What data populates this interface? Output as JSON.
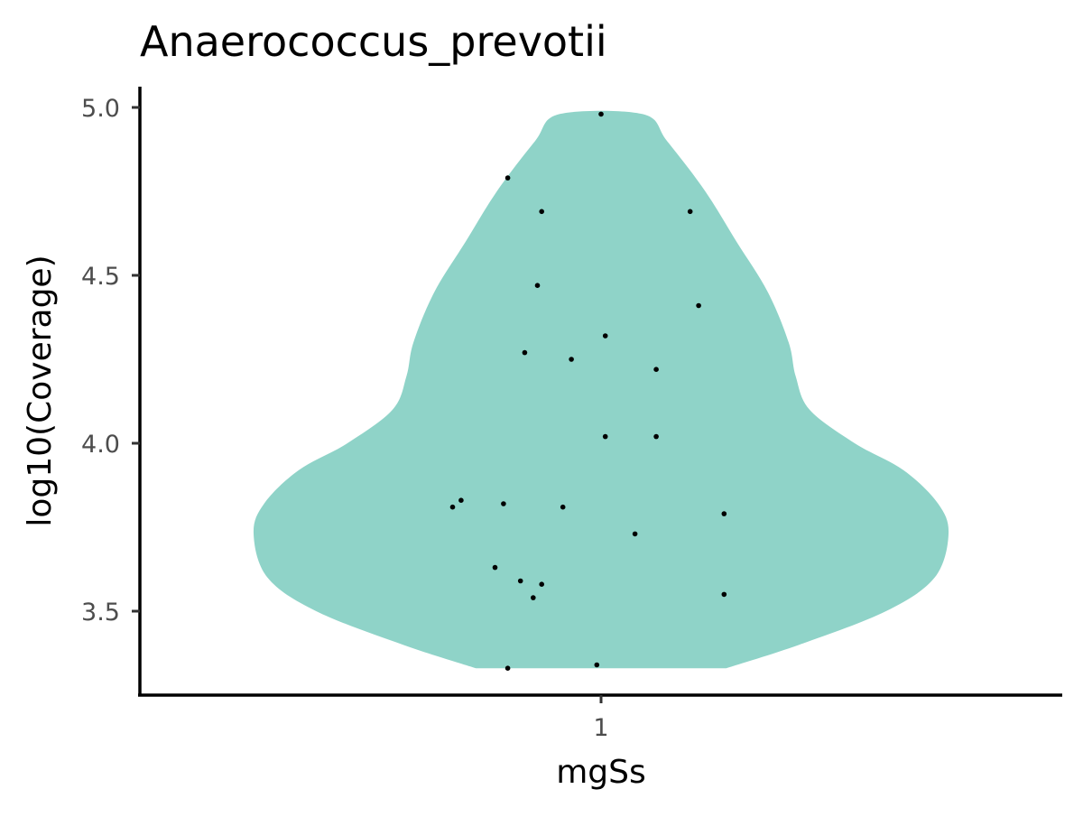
{
  "chart_data": {
    "type": "violin",
    "title": "Anaerococcus_prevotii",
    "xlabel": "mgSs",
    "ylabel": "log10(Coverage)",
    "categories": [
      "1"
    ],
    "y_ticks": [
      "3.5",
      "4.0",
      "4.5",
      "5.0"
    ],
    "ylim": [
      3.25,
      5.05
    ],
    "grid": false,
    "legend": "none",
    "colors": {
      "violin_fill": "#8fd3c8",
      "points": "#000000",
      "axis": "#000000",
      "tick_text": "#4d4d4d"
    },
    "violin": {
      "range": [
        3.33,
        4.98
      ],
      "density_profile": [
        {
          "y": 3.33,
          "w": 0.36
        },
        {
          "y": 3.4,
          "w": 0.57
        },
        {
          "y": 3.5,
          "w": 0.82
        },
        {
          "y": 3.6,
          "w": 0.96
        },
        {
          "y": 3.73,
          "w": 1.0
        },
        {
          "y": 3.82,
          "w": 0.97
        },
        {
          "y": 3.92,
          "w": 0.87
        },
        {
          "y": 4.0,
          "w": 0.73
        },
        {
          "y": 4.1,
          "w": 0.6
        },
        {
          "y": 4.2,
          "w": 0.56
        },
        {
          "y": 4.3,
          "w": 0.54
        },
        {
          "y": 4.45,
          "w": 0.48
        },
        {
          "y": 4.6,
          "w": 0.39
        },
        {
          "y": 4.75,
          "w": 0.3
        },
        {
          "y": 4.9,
          "w": 0.19
        },
        {
          "y": 4.98,
          "w": 0.12
        }
      ]
    },
    "points": [
      {
        "x": 0.0,
        "y": 4.98
      },
      {
        "x": -0.22,
        "y": 4.79
      },
      {
        "x": -0.14,
        "y": 4.69
      },
      {
        "x": 0.21,
        "y": 4.69
      },
      {
        "x": -0.15,
        "y": 4.47
      },
      {
        "x": 0.23,
        "y": 4.41
      },
      {
        "x": 0.01,
        "y": 4.32
      },
      {
        "x": -0.18,
        "y": 4.27
      },
      {
        "x": -0.07,
        "y": 4.25
      },
      {
        "x": 0.13,
        "y": 4.22
      },
      {
        "x": 0.01,
        "y": 4.02
      },
      {
        "x": 0.13,
        "y": 4.02
      },
      {
        "x": -0.33,
        "y": 3.83
      },
      {
        "x": -0.23,
        "y": 3.82
      },
      {
        "x": -0.35,
        "y": 3.81
      },
      {
        "x": -0.09,
        "y": 3.81
      },
      {
        "x": 0.29,
        "y": 3.79
      },
      {
        "x": 0.08,
        "y": 3.73
      },
      {
        "x": -0.25,
        "y": 3.63
      },
      {
        "x": -0.19,
        "y": 3.59
      },
      {
        "x": -0.14,
        "y": 3.58
      },
      {
        "x": -0.16,
        "y": 3.54
      },
      {
        "x": 0.29,
        "y": 3.55
      },
      {
        "x": -0.01,
        "y": 3.34
      },
      {
        "x": -0.22,
        "y": 3.33
      }
    ]
  }
}
